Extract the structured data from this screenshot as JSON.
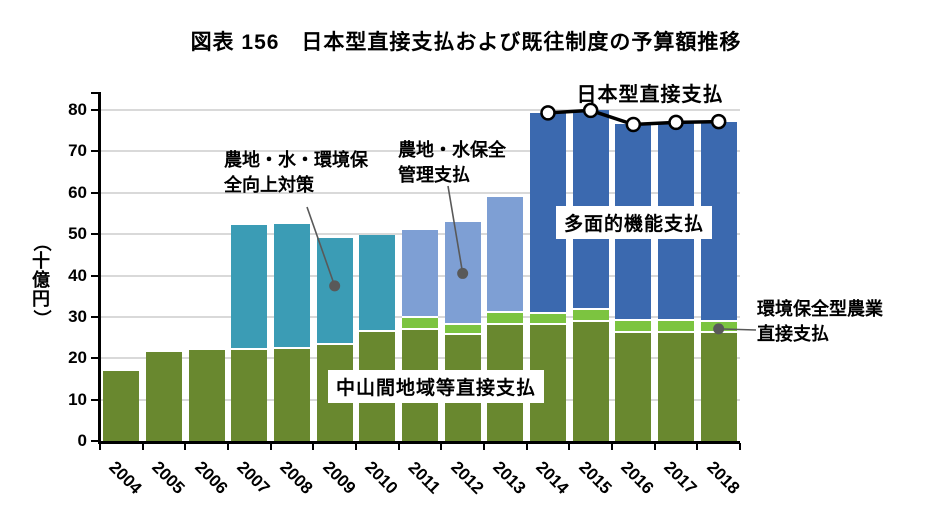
{
  "title": "図表 156　日本型直接支払および既往制度の予算額推移",
  "chart_data": {
    "type": "bar",
    "subtype": "stacked-bar-with-line",
    "categories": [
      2004,
      2005,
      2006,
      2007,
      2008,
      2009,
      2010,
      2011,
      2012,
      2013,
      2014,
      2015,
      2016,
      2017,
      2018
    ],
    "ylabel": "（十億円）",
    "ylim": [
      0,
      80
    ],
    "ytick_step": 10,
    "grid": "horizontal",
    "legend": "none (annotated in-plot)",
    "series": [
      {
        "name": "中山間地域等直接支払",
        "type": "bar",
        "color": "#69882F",
        "values": [
          17.0,
          21.5,
          22.0,
          22.0,
          22.2,
          23.3,
          26.3,
          26.8,
          25.5,
          28.1,
          28.1,
          28.7,
          26.2,
          26.2,
          26.0
        ]
      },
      {
        "name": "環境保全型農業直接支払",
        "type": "bar",
        "color": "#7CC440",
        "values": [
          null,
          null,
          null,
          null,
          null,
          null,
          null,
          2.9,
          2.6,
          2.9,
          2.7,
          2.9,
          2.7,
          2.7,
          2.7
        ]
      },
      {
        "name": "農地・水・環境保全向上対策",
        "type": "bar",
        "color": "#3B9CB5",
        "values": [
          null,
          null,
          null,
          30.2,
          30.2,
          25.7,
          23.4,
          null,
          null,
          null,
          null,
          null,
          null,
          null,
          null
        ]
      },
      {
        "name": "農地・水保全管理支払",
        "type": "bar",
        "color": "#7E9FD4",
        "values": [
          null,
          null,
          null,
          null,
          null,
          null,
          null,
          21.2,
          24.8,
          28.0,
          null,
          null,
          null,
          null,
          null
        ]
      },
      {
        "name": "多面的機能支払",
        "type": "bar",
        "color": "#3B69AF",
        "values": [
          null,
          null,
          null,
          null,
          null,
          null,
          null,
          null,
          null,
          null,
          48.5,
          48.3,
          47.6,
          48.1,
          48.5
        ]
      },
      {
        "name": "日本型直接支払",
        "type": "line",
        "color": "#000000",
        "marker": "circle-open",
        "values": [
          null,
          null,
          null,
          null,
          null,
          null,
          null,
          null,
          null,
          null,
          79.3,
          79.9,
          76.5,
          77.0,
          77.2
        ]
      }
    ],
    "annotations": [
      {
        "id": "japanese-direct-payment",
        "text": "日本型直接支払"
      },
      {
        "id": "multifunction-payment",
        "text": "多面的機能支払"
      },
      {
        "id": "hilly-mountainous-payment",
        "text": "中山間地域等直接支払"
      },
      {
        "id": "farmland-water-environment",
        "lines": [
          "農地・水・環境保",
          "全向上対策"
        ],
        "target_year": 2009,
        "target_value": 37.5
      },
      {
        "id": "farmland-water-management",
        "lines": [
          "農地・水保全",
          "管理支払"
        ],
        "target_year": 2012,
        "target_value": 40.5
      },
      {
        "id": "eco-friendly-agriculture",
        "lines": [
          "環境保全型農業",
          "直接支払"
        ],
        "target_year": 2018,
        "target_value": 27.1
      }
    ],
    "colors": {
      "grid": "#d9d9d9",
      "axis": "#000000",
      "callout": "#595959",
      "line_series": "#000000",
      "marker_fill": "#ffffff"
    }
  }
}
